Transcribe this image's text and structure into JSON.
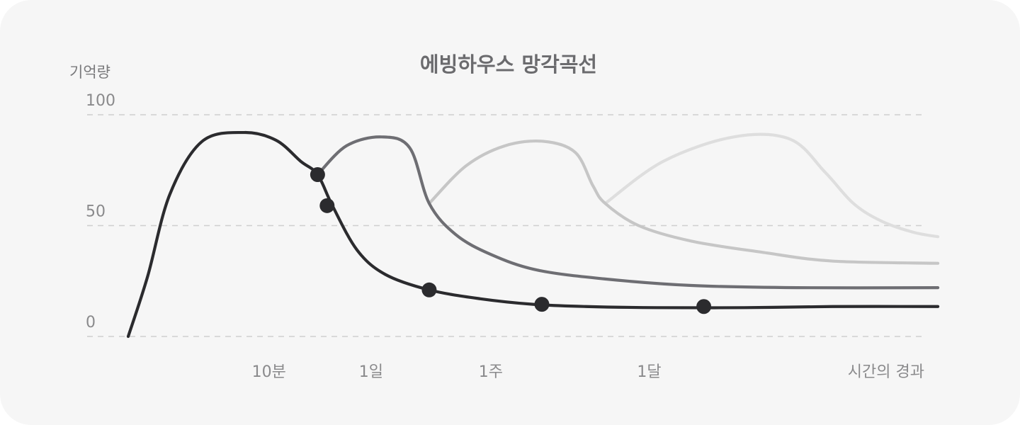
{
  "chart_data": {
    "type": "line",
    "title": "에빙하우스 망각곡선",
    "ylabel": "기억량",
    "xlabel": "시간의 경과",
    "ylim": [
      0,
      100
    ],
    "y_ticks": [
      0,
      50,
      100
    ],
    "x_ticks": [
      "10분",
      "1일",
      "1주",
      "1달"
    ],
    "grid": "horizontal-dashed",
    "colors": [
      "#2b2b2e",
      "#6e6e73",
      "#c6c6c6",
      "#dedede"
    ],
    "series": [
      {
        "points": [
          [
            0,
            0
          ],
          [
            0.55,
            27
          ],
          [
            1.18,
            64
          ],
          [
            2.1,
            88
          ],
          [
            3.3,
            92
          ],
          [
            4.2,
            88.5
          ],
          [
            4.9,
            79
          ],
          [
            5.38,
            73
          ],
          [
            5.8,
            59
          ],
          [
            6.5,
            39
          ],
          [
            7.3,
            28
          ],
          [
            8.55,
            21
          ],
          [
            10,
            17
          ],
          [
            11.5,
            14.5
          ],
          [
            13,
            13.5
          ],
          [
            15,
            13
          ],
          [
            17.5,
            13
          ],
          [
            20,
            13.5
          ],
          [
            23,
            13.5
          ]
        ]
      },
      {
        "points": [
          [
            5.38,
            73
          ],
          [
            6.2,
            86
          ],
          [
            7.2,
            90
          ],
          [
            8.0,
            85
          ],
          [
            8.55,
            60
          ],
          [
            9.3,
            46
          ],
          [
            10.3,
            37
          ],
          [
            11.6,
            30
          ],
          [
            13.5,
            26
          ],
          [
            16,
            23
          ],
          [
            19,
            22
          ],
          [
            23,
            22
          ]
        ]
      },
      {
        "points": [
          [
            8.55,
            60
          ],
          [
            9.6,
            77
          ],
          [
            10.7,
            86
          ],
          [
            11.8,
            88
          ],
          [
            12.7,
            83
          ],
          [
            13.2,
            68
          ],
          [
            13.55,
            60
          ],
          [
            14.5,
            50
          ],
          [
            16,
            43
          ],
          [
            18,
            38
          ],
          [
            20,
            34
          ],
          [
            23,
            33
          ]
        ]
      },
      {
        "points": [
          [
            13.55,
            60
          ],
          [
            15.2,
            79
          ],
          [
            17.2,
            90
          ],
          [
            18.8,
            89
          ],
          [
            19.8,
            74
          ],
          [
            20.6,
            60
          ],
          [
            21.4,
            52
          ],
          [
            22.3,
            47
          ],
          [
            23,
            45
          ]
        ]
      }
    ],
    "markers": [
      {
        "x": 5.38,
        "y": 73
      },
      {
        "x": 5.65,
        "y": 59
      },
      {
        "x": 8.55,
        "y": 21
      },
      {
        "x": 11.75,
        "y": 14.5
      },
      {
        "x": 16.35,
        "y": 13.5
      }
    ],
    "x_tick_positions": [
      4.0,
      6.9,
      10.3,
      14.8
    ]
  }
}
